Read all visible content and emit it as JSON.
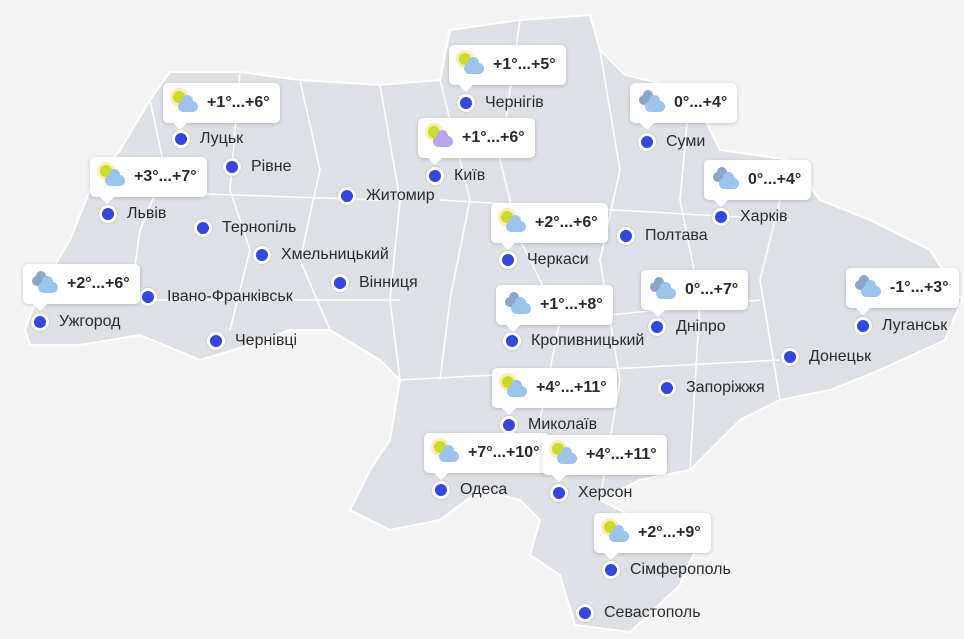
{
  "colors": {
    "land": "#dde1e6",
    "border": "#ffffff",
    "dot": "#3347e0",
    "background": "#f4f4f5"
  },
  "cities": [
    {
      "name": "Чернігів",
      "forecast": "+1°...+5°",
      "icon": "sun-cloud-icon"
    },
    {
      "name": "Луцьк",
      "forecast": "+1°...+6°",
      "icon": "sun-cloud-icon"
    },
    {
      "name": "Рівне"
    },
    {
      "name": "Львів",
      "forecast": "+3°...+7°",
      "icon": "sun-cloud-icon"
    },
    {
      "name": "Тернопіль"
    },
    {
      "name": "Хмельницький"
    },
    {
      "name": "Житомир"
    },
    {
      "name": "Київ",
      "forecast": "+1°...+6°",
      "icon": "sun-cloud-icon"
    },
    {
      "name": "Суми",
      "forecast": "0°...+4°",
      "icon": "cloudy-icon"
    },
    {
      "name": "Харків",
      "forecast": "0°...+4°",
      "icon": "cloudy-icon"
    },
    {
      "name": "Полтава"
    },
    {
      "name": "Черкаси",
      "forecast": "+2°...+6°",
      "icon": "sun-cloud-icon"
    },
    {
      "name": "Вінниця"
    },
    {
      "name": "Івано-Франківськ"
    },
    {
      "name": "Ужгород",
      "forecast": "+2°...+6°",
      "icon": "cloudy-icon"
    },
    {
      "name": "Чернівці"
    },
    {
      "name": "Кропивницький",
      "forecast": "+1°...+8°",
      "icon": "cloudy-icon"
    },
    {
      "name": "Дніпро",
      "forecast": "0°...+7°",
      "icon": "cloudy-icon"
    },
    {
      "name": "Луганськ",
      "forecast": "-1°...+3°",
      "icon": "cloudy-icon"
    },
    {
      "name": "Донецьк"
    },
    {
      "name": "Запоріжжя"
    },
    {
      "name": "Миколаїв",
      "forecast": "+4°...+11°",
      "icon": "sun-cloud-icon"
    },
    {
      "name": "Одеса",
      "forecast": "+7°...+10°",
      "icon": "sun-cloud-icon"
    },
    {
      "name": "Херсон",
      "forecast": "+4°...+11°",
      "icon": "sun-cloud-icon"
    },
    {
      "name": "Сімферополь",
      "forecast": "+2°...+9°",
      "icon": "sun-cloud-icon"
    },
    {
      "name": "Севастополь"
    }
  ]
}
